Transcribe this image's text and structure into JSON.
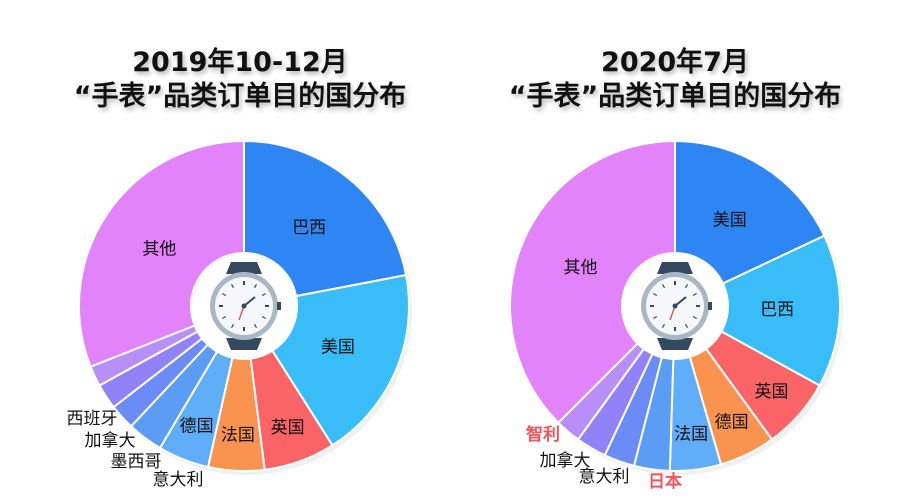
{
  "chart_data": [
    {
      "type": "pie",
      "title_line1": "2019年10-12月",
      "title_line2": "“手表”品类订单目的国分布",
      "slices": [
        {
          "label": "巴西",
          "value": 22,
          "color": "#2e86f5"
        },
        {
          "label": "美国",
          "value": 19,
          "color": "#38bdf8"
        },
        {
          "label": "英国",
          "value": 7,
          "color": "#fa6466"
        },
        {
          "label": "法国",
          "value": 5.5,
          "color": "#fb9350"
        },
        {
          "label": "德国",
          "value": 5,
          "color": "#60aef9"
        },
        {
          "label": "意大利",
          "value": 3.5,
          "color": "#5b9cf5"
        },
        {
          "label": "墨西哥",
          "value": 2.5,
          "color": "#6b8bf6"
        },
        {
          "label": "加拿大",
          "value": 2.5,
          "color": "#9183f7"
        },
        {
          "label": "西班牙",
          "value": 2,
          "color": "#b68ff9"
        },
        {
          "label": "其他",
          "value": 31,
          "color": "#e383fb"
        }
      ]
    },
    {
      "type": "pie",
      "title_line1": "2020年7月",
      "title_line2": "“手表”品类订单目的国分布",
      "slices": [
        {
          "label": "美国",
          "value": 18,
          "color": "#2e86f5"
        },
        {
          "label": "巴西",
          "value": 15,
          "color": "#38bdf8"
        },
        {
          "label": "英国",
          "value": 7,
          "color": "#fa6466"
        },
        {
          "label": "德国",
          "value": 5.5,
          "color": "#fb9350"
        },
        {
          "label": "法国",
          "value": 5,
          "color": "#60aef9"
        },
        {
          "label": "日本",
          "value": 3.5,
          "color": "#5b9cf5"
        },
        {
          "label": "意大利",
          "value": 3,
          "color": "#6b8bf6"
        },
        {
          "label": "加拿大",
          "value": 3,
          "color": "#9183f7"
        },
        {
          "label": "智利",
          "value": 2.5,
          "color": "#b68ff9"
        },
        {
          "label": "其他",
          "value": 37.5,
          "color": "#e383fb"
        }
      ],
      "highlight_color": "#f0545c",
      "highlight_labels": [
        "日本",
        "智利"
      ]
    }
  ]
}
